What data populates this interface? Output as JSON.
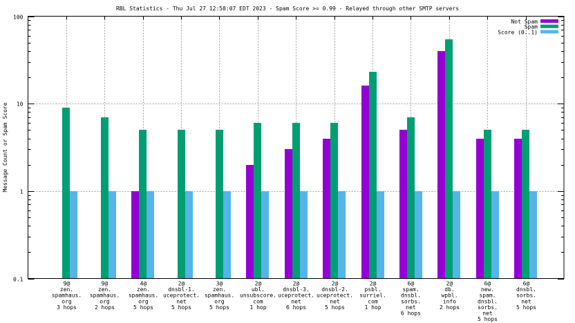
{
  "chart_data": {
    "type": "bar",
    "title": "RBL Statistics - Thu Jul 27 12:58:07 EDT 2023 - Spam Score >= 0.99 - Relayed through other SMTP servers",
    "xlabel": "",
    "ylabel": "Message Count or Spam Score",
    "yscale": "log",
    "ylim": [
      0.1,
      100
    ],
    "yticks": [
      {
        "value": 0.1,
        "label": "0.1"
      },
      {
        "value": 1,
        "label": "1"
      },
      {
        "value": 10,
        "label": "10"
      },
      {
        "value": 100,
        "label": "100"
      }
    ],
    "grid": true,
    "legend_position": "top-right",
    "categories": [
      [
        "9@",
        "zen.",
        "spamhaus.",
        "org",
        "3 hops"
      ],
      [
        "9@",
        "zen.",
        "spamhaus.",
        "org",
        "2 hops"
      ],
      [
        "4@",
        "zen.",
        "spamhaus.",
        "org",
        "5 hops"
      ],
      [
        "2@",
        "dnsbl-1.",
        "uceprotect.",
        "net",
        "5 hops"
      ],
      [
        "3@",
        "zen.",
        "spamhaus.",
        "org",
        "5 hops"
      ],
      [
        "2@",
        "ubl.",
        "unsubscore.",
        "com",
        "1 hop"
      ],
      [
        "2@",
        "dnsbl-3.",
        "uceprotect.",
        "net",
        "6 hops"
      ],
      [
        "2@",
        "dnsbl-2.",
        "uceprotect.",
        "net",
        "5 hops"
      ],
      [
        "2@",
        "psbl.",
        "surriel.",
        "com",
        "1 hop"
      ],
      [
        "6@",
        "spam.",
        "dnsbl.",
        "sorbs.",
        "net",
        "6 hops"
      ],
      [
        "2@",
        "db.",
        "wpbl.",
        "info",
        "2 hops"
      ],
      [
        "6@",
        "new.",
        "spam.",
        "dnsbl.",
        "sorbs.",
        "net",
        "5 hops"
      ],
      [
        "6@",
        "dnsbl.",
        "sorbs.",
        "net",
        "5 hops"
      ]
    ],
    "series": [
      {
        "name": "Not Spam",
        "color": "#9400d3",
        "values": [
          0,
          0,
          1,
          0,
          0,
          2,
          3,
          4,
          16,
          5,
          40,
          4,
          4
        ]
      },
      {
        "name": "Spam",
        "color": "#009e73",
        "values": [
          9,
          7,
          5,
          5,
          5,
          6,
          6,
          6,
          23,
          7,
          54,
          5,
          5
        ]
      },
      {
        "name": "Score (0..1)",
        "color": "#56b4e9",
        "values": [
          1,
          1,
          1,
          1,
          1,
          1,
          1,
          1,
          1,
          1,
          1,
          1,
          1
        ]
      }
    ]
  }
}
